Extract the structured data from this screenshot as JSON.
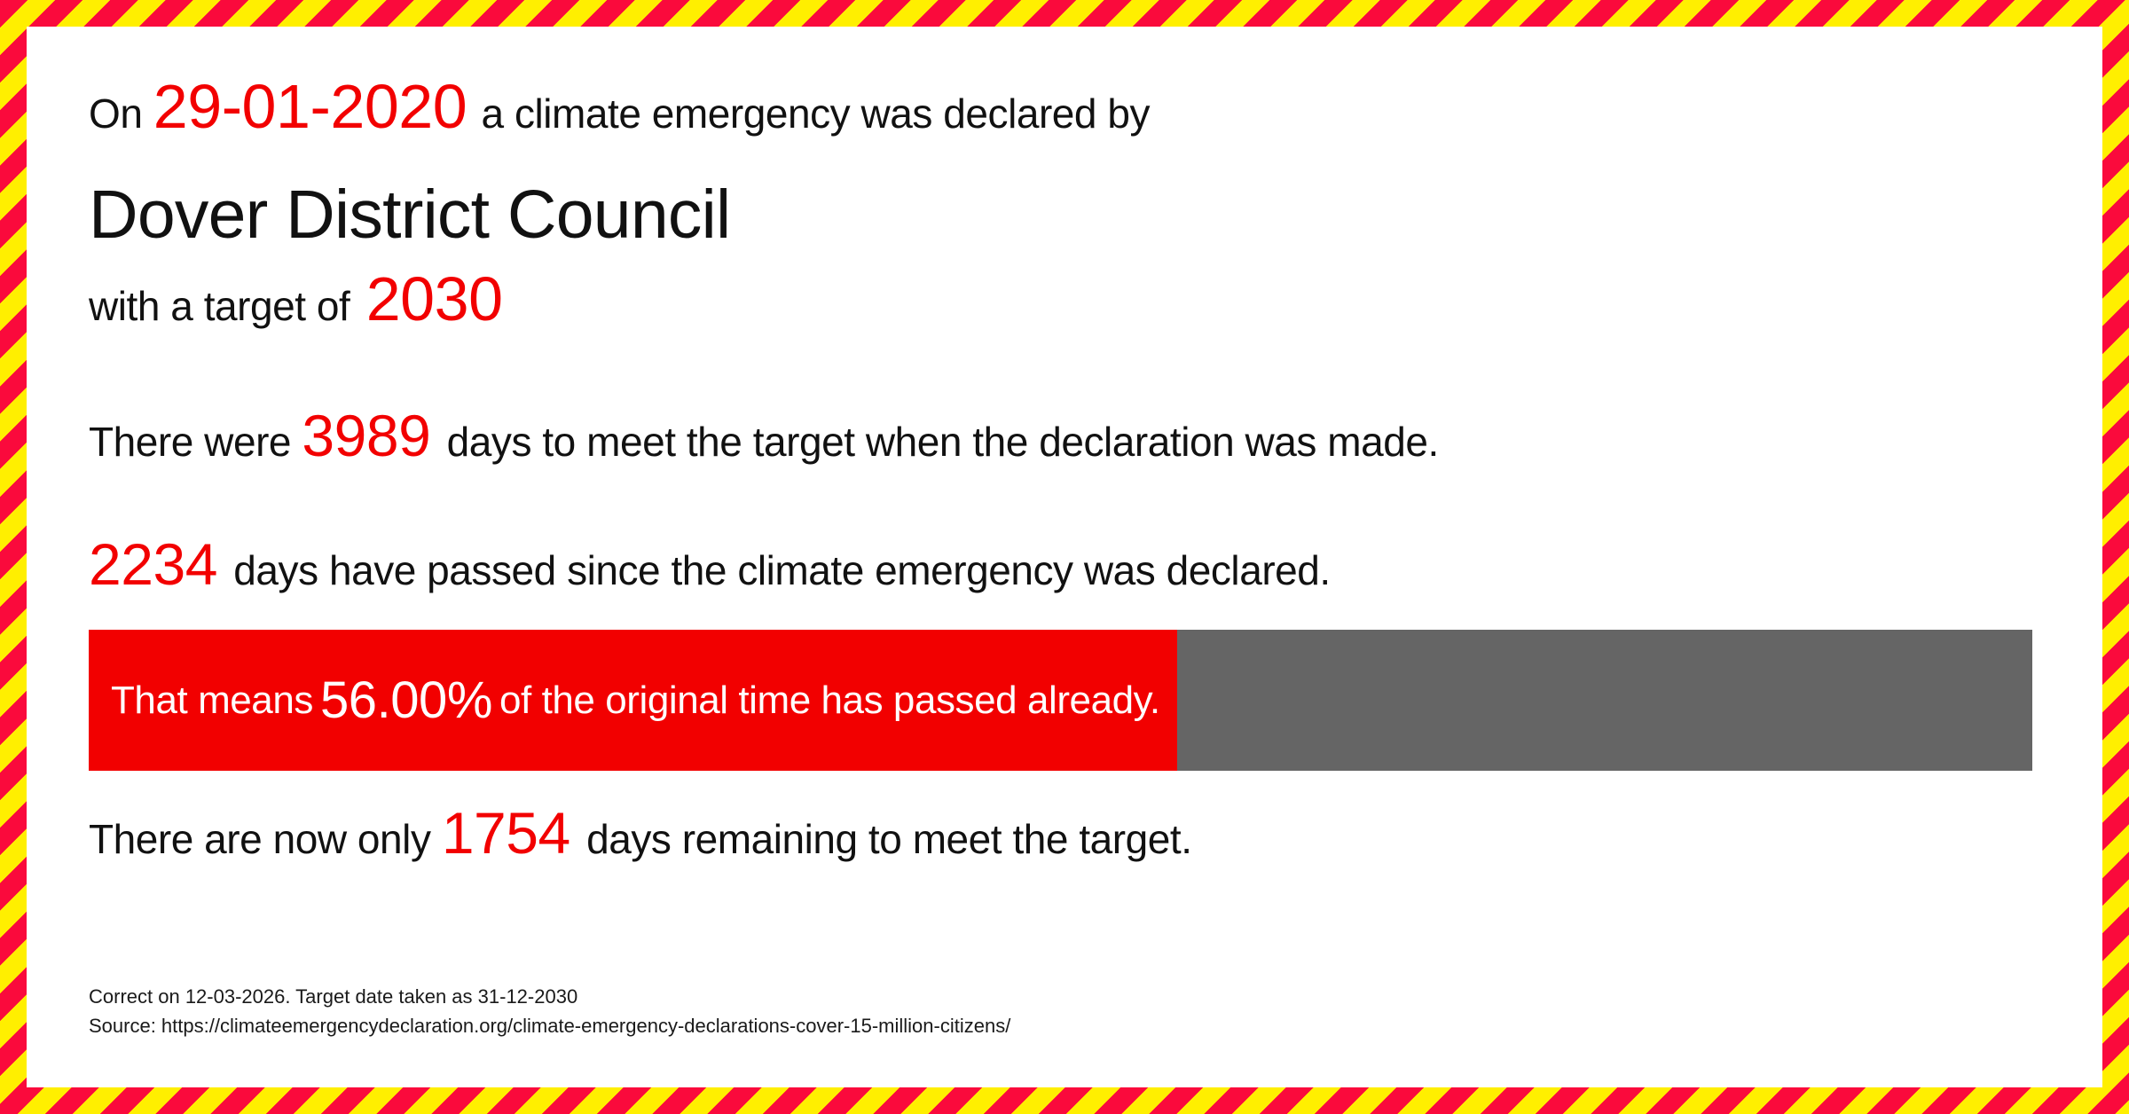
{
  "colors": {
    "accent_red": "#f20000",
    "border_red": "#fa0a3c",
    "border_yellow": "#ffef00",
    "bar_gray": "#656565",
    "bar_text": "#ffffff"
  },
  "lines": {
    "declaration": {
      "prefix": "On ",
      "date": "29-01-2020",
      "suffix": " a climate emergency was declared by"
    },
    "council": "Dover District Council",
    "target": {
      "prefix": "with a target of ",
      "year": "2030"
    },
    "days_total": {
      "prefix": "There were ",
      "number": "3989",
      "suffix": " days to meet the target when the declaration was made."
    },
    "days_passed": {
      "number": "2234",
      "suffix": " days have passed since the climate emergency was declared."
    },
    "days_remaining": {
      "prefix": "There are now only ",
      "number": "1754",
      "suffix": " days remaining to meet the target."
    }
  },
  "progress": {
    "prefix": "That means ",
    "percent": "56.00%",
    "percent_value": 56.0,
    "suffix": " of the original time has passed already."
  },
  "footer": {
    "line1": "Correct on 12-03-2026. Target date taken as 31-12-2030",
    "line2": "Source: https://climateemergencydeclaration.org/climate-emergency-declarations-cover-15-million-citizens/"
  }
}
